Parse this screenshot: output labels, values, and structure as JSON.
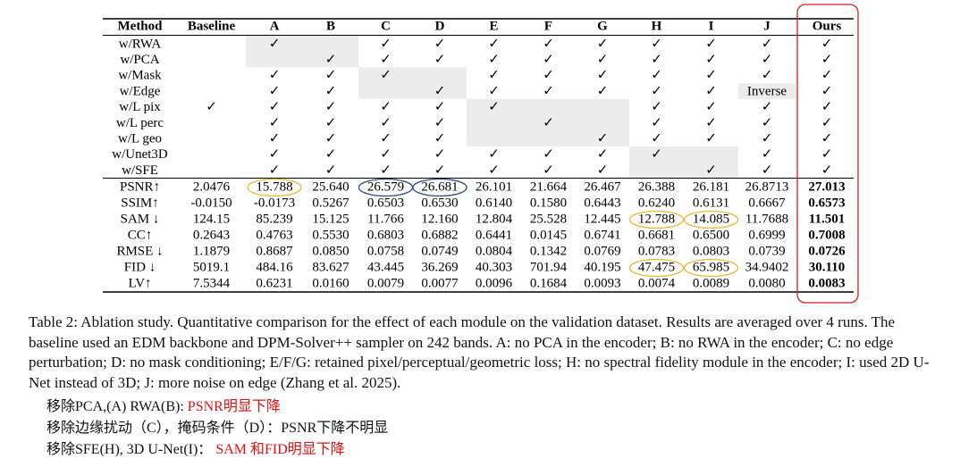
{
  "table": {
    "header": [
      "Method",
      "Baseline",
      "A",
      "B",
      "C",
      "D",
      "E",
      "F",
      "G",
      "H",
      "I",
      "J",
      "Ours"
    ],
    "check_rows": [
      [
        "w/RWA",
        null,
        "✓",
        null,
        "✓",
        "✓",
        "✓",
        "✓",
        "✓",
        "✓",
        "✓",
        "✓",
        "✓"
      ],
      [
        "w/PCA",
        null,
        null,
        "✓",
        "✓",
        "✓",
        "✓",
        "✓",
        "✓",
        "✓",
        "✓",
        "✓",
        "✓"
      ],
      [
        "w/Mask",
        null,
        "✓",
        "✓",
        "✓",
        null,
        "✓",
        "✓",
        "✓",
        "✓",
        "✓",
        "✓",
        "✓"
      ],
      [
        "w/Edge",
        null,
        "✓",
        "✓",
        null,
        "✓",
        "✓",
        "✓",
        "✓",
        "✓",
        "✓",
        "Inverse",
        "✓"
      ],
      [
        "w/L pix",
        "✓",
        "✓",
        "✓",
        "✓",
        "✓",
        "✓",
        null,
        null,
        "✓",
        "✓",
        "✓",
        "✓"
      ],
      [
        "w/L perc",
        null,
        "✓",
        "✓",
        "✓",
        "✓",
        null,
        "✓",
        null,
        "✓",
        "✓",
        "✓",
        "✓"
      ],
      [
        "w/L geo",
        null,
        "✓",
        "✓",
        "✓",
        "✓",
        null,
        null,
        "✓",
        "✓",
        "✓",
        "✓",
        "✓"
      ],
      [
        "w/Unet3D",
        null,
        "✓",
        "✓",
        "✓",
        "✓",
        "✓",
        "✓",
        "✓",
        "✓",
        null,
        "✓",
        "✓"
      ],
      [
        "w/SFE",
        null,
        "✓",
        "✓",
        "✓",
        "✓",
        "✓",
        "✓",
        "✓",
        null,
        "✓",
        "✓",
        "✓"
      ]
    ],
    "metric_rows": [
      [
        "PSNR↑",
        "2.0476",
        "15.788",
        "25.640",
        "26.579",
        "26.681",
        "26.101",
        "21.664",
        "26.467",
        "26.388",
        "26.181",
        "26.8713",
        "27.013"
      ],
      [
        "SSIM↑",
        "-0.0150",
        "-0.0173",
        "0.5267",
        "0.6503",
        "0.6530",
        "0.6140",
        "0.1580",
        "0.6443",
        "0.6240",
        "0.6131",
        "0.6667",
        "0.6573"
      ],
      [
        "SAM ↓",
        "124.15",
        "85.239",
        "15.125",
        "11.766",
        "12.160",
        "12.804",
        "25.528",
        "12.445",
        "12.788",
        "14.085",
        "11.7688",
        "11.501"
      ],
      [
        "CC↑",
        "0.2643",
        "0.4763",
        "0.5530",
        "0.6803",
        "0.6882",
        "0.6441",
        "0.0145",
        "0.6741",
        "0.6681",
        "0.6500",
        "0.6999",
        "0.7008"
      ],
      [
        "RMSE ↓",
        "1.1879",
        "0.8687",
        "0.0850",
        "0.0758",
        "0.0749",
        "0.0804",
        "0.1342",
        "0.0769",
        "0.0783",
        "0.0803",
        "0.0739",
        "0.0726"
      ],
      [
        "FID ↓",
        "5019.1",
        "484.16",
        "83.627",
        "43.445",
        "36.269",
        "40.303",
        "701.94",
        "40.195",
        "47.475",
        "65.985",
        "34.9402",
        "30.110"
      ],
      [
        "LV↑",
        "7.5344",
        "0.6231",
        "0.0160",
        "0.0079",
        "0.0077",
        "0.0096",
        "0.1684",
        "0.0093",
        "0.0074",
        "0.0089",
        "0.0080",
        "0.0083"
      ]
    ]
  },
  "caption": "Table 2: Ablation study. Quantitative comparison for the effect of each module on the validation dataset. Results are averaged over 4 runs. The baseline used an EDM backbone and DPM-Solver++ sampler on 242 bands. A: no PCA in the encoder; B: no RWA in the encoder; C: no edge perturbation; D: no mask conditioning; E/F/G: retained pixel/perceptual/geometric loss; H: no spectral fidelity module in the encoder; I: used 2D U-Net instead of 3D; J: more noise on edge (Zhang et al. 2025).",
  "notes": [
    [
      "移除PCA,(A) RWA(B): ",
      "PSNR明显下降"
    ],
    [
      "移除边缘扰动（C），掩码条件（D）：PSNR下降不明显"
    ],
    [
      "移除SFE(H), 3D U-Net(I)：",
      " SAM 和FID明显下降"
    ]
  ]
}
